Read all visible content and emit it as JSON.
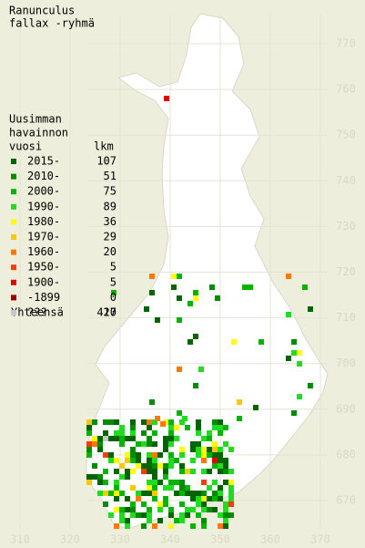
{
  "title": [
    "Ranunculus",
    "fallax -ryhmä"
  ],
  "legend": {
    "header": [
      "Uusimman",
      "havainnon",
      "vuosi"
    ],
    "count_header": "lkm",
    "rows": [
      {
        "label": "2015-",
        "count": 107,
        "color": "#006400"
      },
      {
        "label": "2010-",
        "count": 51,
        "color": "#008c00"
      },
      {
        "label": "2000-",
        "count": 75,
        "color": "#00b400"
      },
      {
        "label": "1990-",
        "count": 89,
        "color": "#20dc20"
      },
      {
        "label": "1980-",
        "count": 36,
        "color": "#ffff00"
      },
      {
        "label": "1970-",
        "count": 29,
        "color": "#ffc800"
      },
      {
        "label": "1960-",
        "count": 20,
        "color": "#ff7800"
      },
      {
        "label": "1950-",
        "count": 5,
        "color": "#ff3c00"
      },
      {
        "label": "1900-",
        "count": 5,
        "color": "#e00000"
      },
      {
        "label": "-1899",
        "count": 0,
        "color": "#a00000"
      },
      {
        "label": "???",
        "count": 10,
        "color": "#c8c8c8"
      }
    ],
    "total": {
      "label": "Yhteensä",
      "count": 427
    }
  },
  "x_axis": {
    "ticks": [
      310,
      320,
      330,
      340,
      350,
      360,
      370
    ]
  },
  "y_axis": {
    "ticks": [
      670,
      680,
      690,
      700,
      710,
      720,
      730,
      740,
      750,
      760,
      770
    ]
  }
}
